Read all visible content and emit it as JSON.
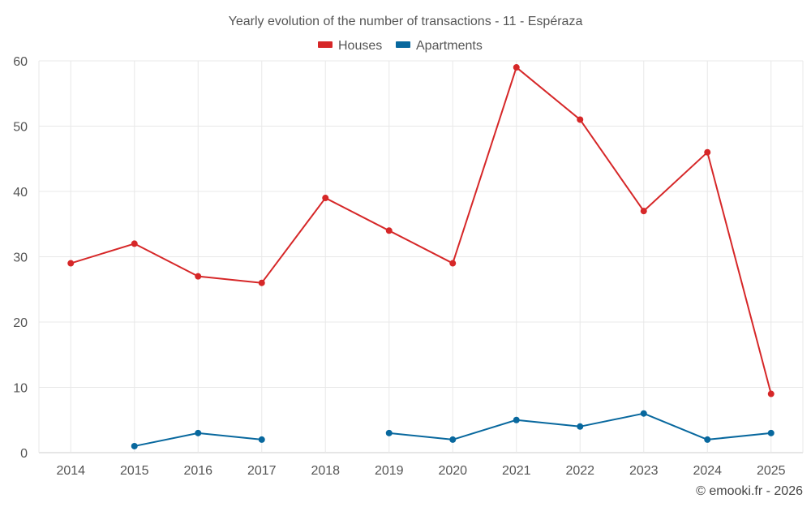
{
  "chart_data": {
    "type": "line",
    "title": "Yearly evolution of the number of transactions - 11 - Espéraza",
    "xlabel": "",
    "ylabel": "",
    "categories": [
      "2014",
      "2015",
      "2016",
      "2017",
      "2018",
      "2019",
      "2020",
      "2021",
      "2022",
      "2023",
      "2024",
      "2025"
    ],
    "ylim": [
      0,
      60
    ],
    "yticks": [
      0,
      10,
      20,
      30,
      40,
      50,
      60
    ],
    "grid": true,
    "legend_position": "top-center",
    "series": [
      {
        "name": "Houses",
        "color": "#d62728",
        "values": [
          29,
          32,
          27,
          26,
          39,
          34,
          29,
          59,
          51,
          37,
          46,
          9
        ]
      },
      {
        "name": "Apartments",
        "color": "#08689e",
        "values": [
          null,
          1,
          3,
          2,
          null,
          3,
          2,
          5,
          4,
          6,
          2,
          3
        ]
      }
    ]
  },
  "credit": "© emooki.fr - 2026"
}
